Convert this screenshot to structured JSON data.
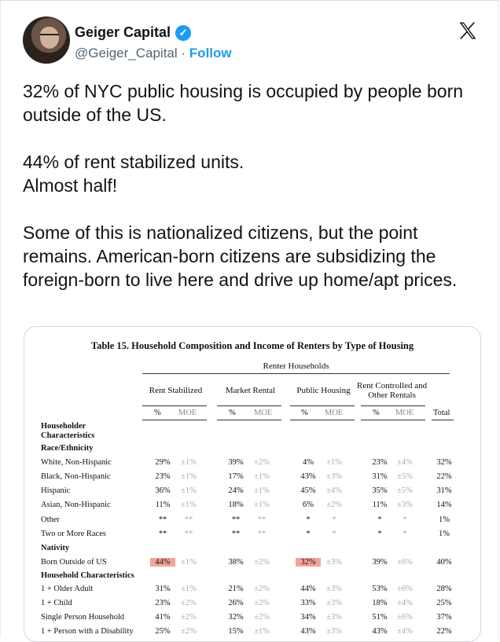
{
  "author": {
    "name": "Geiger Capital",
    "handle": "@Geiger_Capital",
    "separator": "·",
    "follow_label": "Follow"
  },
  "icons": [
    "verified-badge-icon",
    "x-logo-icon"
  ],
  "colors": {
    "accent": "#1d9bf0",
    "highlight": "#f4a49a"
  },
  "tweet": {
    "text": "32% of NYC public housing is occupied by people born outside of the US.\n\n44% of rent stabilized units.\nAlmost half!\n\nSome of this is nationalized citizens, but the point remains. American-born citizens are subsidizing the foreign-born to live here and drive up home/apt prices."
  },
  "table": {
    "title": "Table 15. Household Composition and Income of Renters by Type of Housing",
    "renter_header": "Renter Households",
    "groups": [
      "Rent Stabilized",
      "Market Rental",
      "Public Housing",
      "Rent Controlled and Other Rentals"
    ],
    "sub_pct": "%",
    "sub_moe": "MOE",
    "total_label": "Total",
    "sections": {
      "householder": "Householder Characteristics",
      "race": "Race/Ethnicity",
      "nativity": "Nativity",
      "household": "Household Characteristics"
    },
    "rows": [
      {
        "label": "White, Non-Hispanic",
        "v": [
          "29%",
          "±1%",
          "39%",
          "±2%",
          "4%",
          "±1%",
          "23%",
          "±4%",
          "32%"
        ]
      },
      {
        "label": "Black, Non-Hispanic",
        "v": [
          "23%",
          "±1%",
          "17%",
          "±1%",
          "43%",
          "±3%",
          "31%",
          "±5%",
          "22%"
        ]
      },
      {
        "label": "Hispanic",
        "v": [
          "36%",
          "±1%",
          "24%",
          "±1%",
          "45%",
          "±4%",
          "35%",
          "±5%",
          "31%"
        ]
      },
      {
        "label": "Asian, Non-Hispanic",
        "v": [
          "11%",
          "±1%",
          "18%",
          "±1%",
          "6%",
          "±2%",
          "11%",
          "±3%",
          "14%"
        ]
      },
      {
        "label": "Other",
        "v": [
          "**",
          "**",
          "**",
          "**",
          "*",
          "*",
          "*",
          "*",
          "1%"
        ]
      },
      {
        "label": "Two or More Races",
        "v": [
          "**",
          "**",
          "**",
          "**",
          "*",
          "*",
          "*",
          "*",
          "1%"
        ]
      },
      {
        "label": "Born Outside of US",
        "v": [
          "44%",
          "±1%",
          "38%",
          "±2%",
          "32%",
          "±3%",
          "39%",
          "±6%",
          "40%"
        ]
      },
      {
        "label": "1 + Older Adult",
        "v": [
          "31%",
          "±1%",
          "21%",
          "±2%",
          "44%",
          "±3%",
          "53%",
          "±6%",
          "28%"
        ]
      },
      {
        "label": "1 + Child",
        "v": [
          "23%",
          "±2%",
          "26%",
          "±2%",
          "33%",
          "±3%",
          "18%",
          "±4%",
          "25%"
        ]
      },
      {
        "label": "Single Person Household",
        "v": [
          "41%",
          "±2%",
          "32%",
          "±2%",
          "34%",
          "±3%",
          "51%",
          "±6%",
          "37%"
        ]
      },
      {
        "label": "1 + Person with a Disability",
        "v": [
          "25%",
          "±2%",
          "15%",
          "±1%",
          "43%",
          "±3%",
          "43%",
          "±4%",
          "22%"
        ]
      }
    ]
  }
}
